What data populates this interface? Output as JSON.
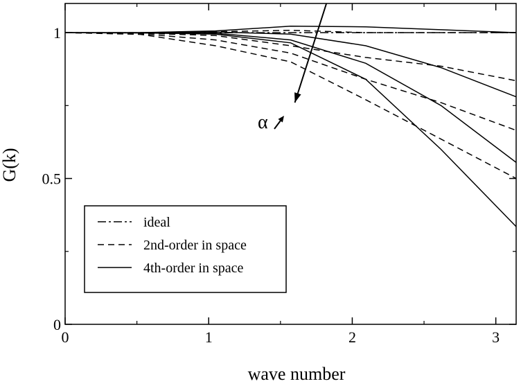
{
  "chart_data": {
    "type": "line",
    "xlabel": "wave number",
    "ylabel": "G(k)",
    "xlim": [
      0,
      3.14159
    ],
    "ylim": [
      0,
      1.1
    ],
    "xticks": [
      0,
      1,
      2,
      3
    ],
    "yticks": [
      0,
      0.5,
      1
    ],
    "xtick_labels": [
      "0",
      "1",
      "2",
      "3"
    ],
    "ytick_labels": [
      "0",
      "0.5",
      "1"
    ],
    "grid": false,
    "legend": {
      "placement": "bottom-left",
      "entries": [
        {
          "label": "ideal",
          "style": "dashdot"
        },
        {
          "label": "2nd-order in space",
          "style": "dashed"
        },
        {
          "label": "4th-order in space",
          "style": "solid"
        }
      ]
    },
    "annotation": {
      "symbol": "α",
      "arrow": {
        "from": [
          1.82,
          1.1
        ],
        "to": [
          1.6,
          0.76
        ]
      }
    },
    "series": [
      {
        "style": "dashdot",
        "x": [
          0,
          0.524,
          1.047,
          1.571,
          2.094,
          2.618,
          3.1416
        ],
        "y": [
          1,
          1,
          1,
          1,
          1,
          1,
          1
        ]
      },
      {
        "style": "solid",
        "x": [
          0,
          0.524,
          1.047,
          1.571,
          2.094,
          2.618,
          3.1416
        ],
        "y": [
          1,
          1.0,
          1.006,
          1.022,
          1.02,
          1.01,
          1.0
        ]
      },
      {
        "style": "solid",
        "x": [
          0,
          0.524,
          1.047,
          1.571,
          2.094,
          2.618,
          3.1416
        ],
        "y": [
          1,
          1.0,
          1.002,
          0.995,
          0.955,
          0.88,
          0.78
        ]
      },
      {
        "style": "solid",
        "x": [
          0,
          0.524,
          1.047,
          1.571,
          2.094,
          2.618,
          3.1416
        ],
        "y": [
          1,
          0.999,
          0.998,
          0.975,
          0.895,
          0.75,
          0.555
        ]
      },
      {
        "style": "solid",
        "x": [
          0,
          0.524,
          1.047,
          1.571,
          2.094,
          2.618,
          3.1416
        ],
        "y": [
          1,
          0.999,
          0.995,
          0.965,
          0.84,
          0.6,
          0.335
        ]
      },
      {
        "style": "dashed",
        "x": [
          0,
          0.524,
          1.047,
          1.571,
          2.094,
          2.618,
          3.1416
        ],
        "y": [
          1,
          1.0,
          1.003,
          1.008,
          1.0,
          1.0,
          1.0
        ]
      },
      {
        "style": "dashed",
        "x": [
          0,
          0.524,
          1.047,
          1.571,
          2.094,
          2.618,
          3.1416
        ],
        "y": [
          1,
          0.998,
          0.99,
          0.955,
          0.915,
          0.885,
          0.835
        ]
      },
      {
        "style": "dashed",
        "x": [
          0,
          0.524,
          1.047,
          1.571,
          2.094,
          2.618,
          3.1416
        ],
        "y": [
          1,
          0.996,
          0.975,
          0.93,
          0.84,
          0.76,
          0.665
        ]
      },
      {
        "style": "dashed",
        "x": [
          0,
          0.524,
          1.047,
          1.571,
          2.094,
          2.618,
          3.1416
        ],
        "y": [
          1,
          0.994,
          0.955,
          0.9,
          0.77,
          0.635,
          0.5
        ]
      }
    ]
  }
}
